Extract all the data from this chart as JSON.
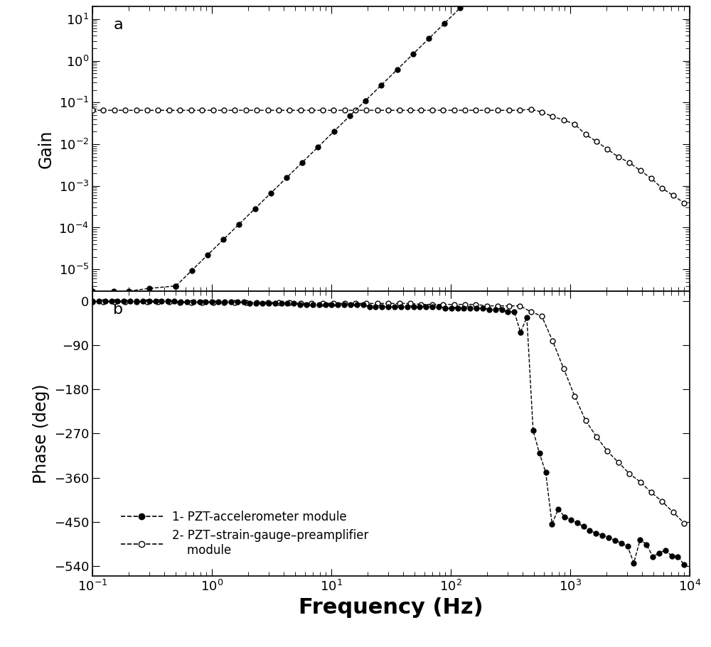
{
  "title_a": "a",
  "title_b": "b",
  "xlabel": "Frequency (Hz)",
  "ylabel_gain": "Gain",
  "ylabel_phase": "Phase (deg)",
  "legend1": "1- PZT-accelerometer module",
  "legend2": "2- PZT–strain-gauge–preamplifier\n    module",
  "xlim": [
    0.1,
    10000
  ],
  "gain_ylim_low": 3e-06,
  "gain_ylim_high": 20,
  "phase_ylim": [
    -560,
    20
  ],
  "phase_yticks": [
    0,
    -90,
    -180,
    -270,
    -360,
    -450,
    -540
  ],
  "background_color": "#ffffff",
  "marker_size_filled": 5,
  "marker_size_open": 5,
  "linewidth": 1.0
}
